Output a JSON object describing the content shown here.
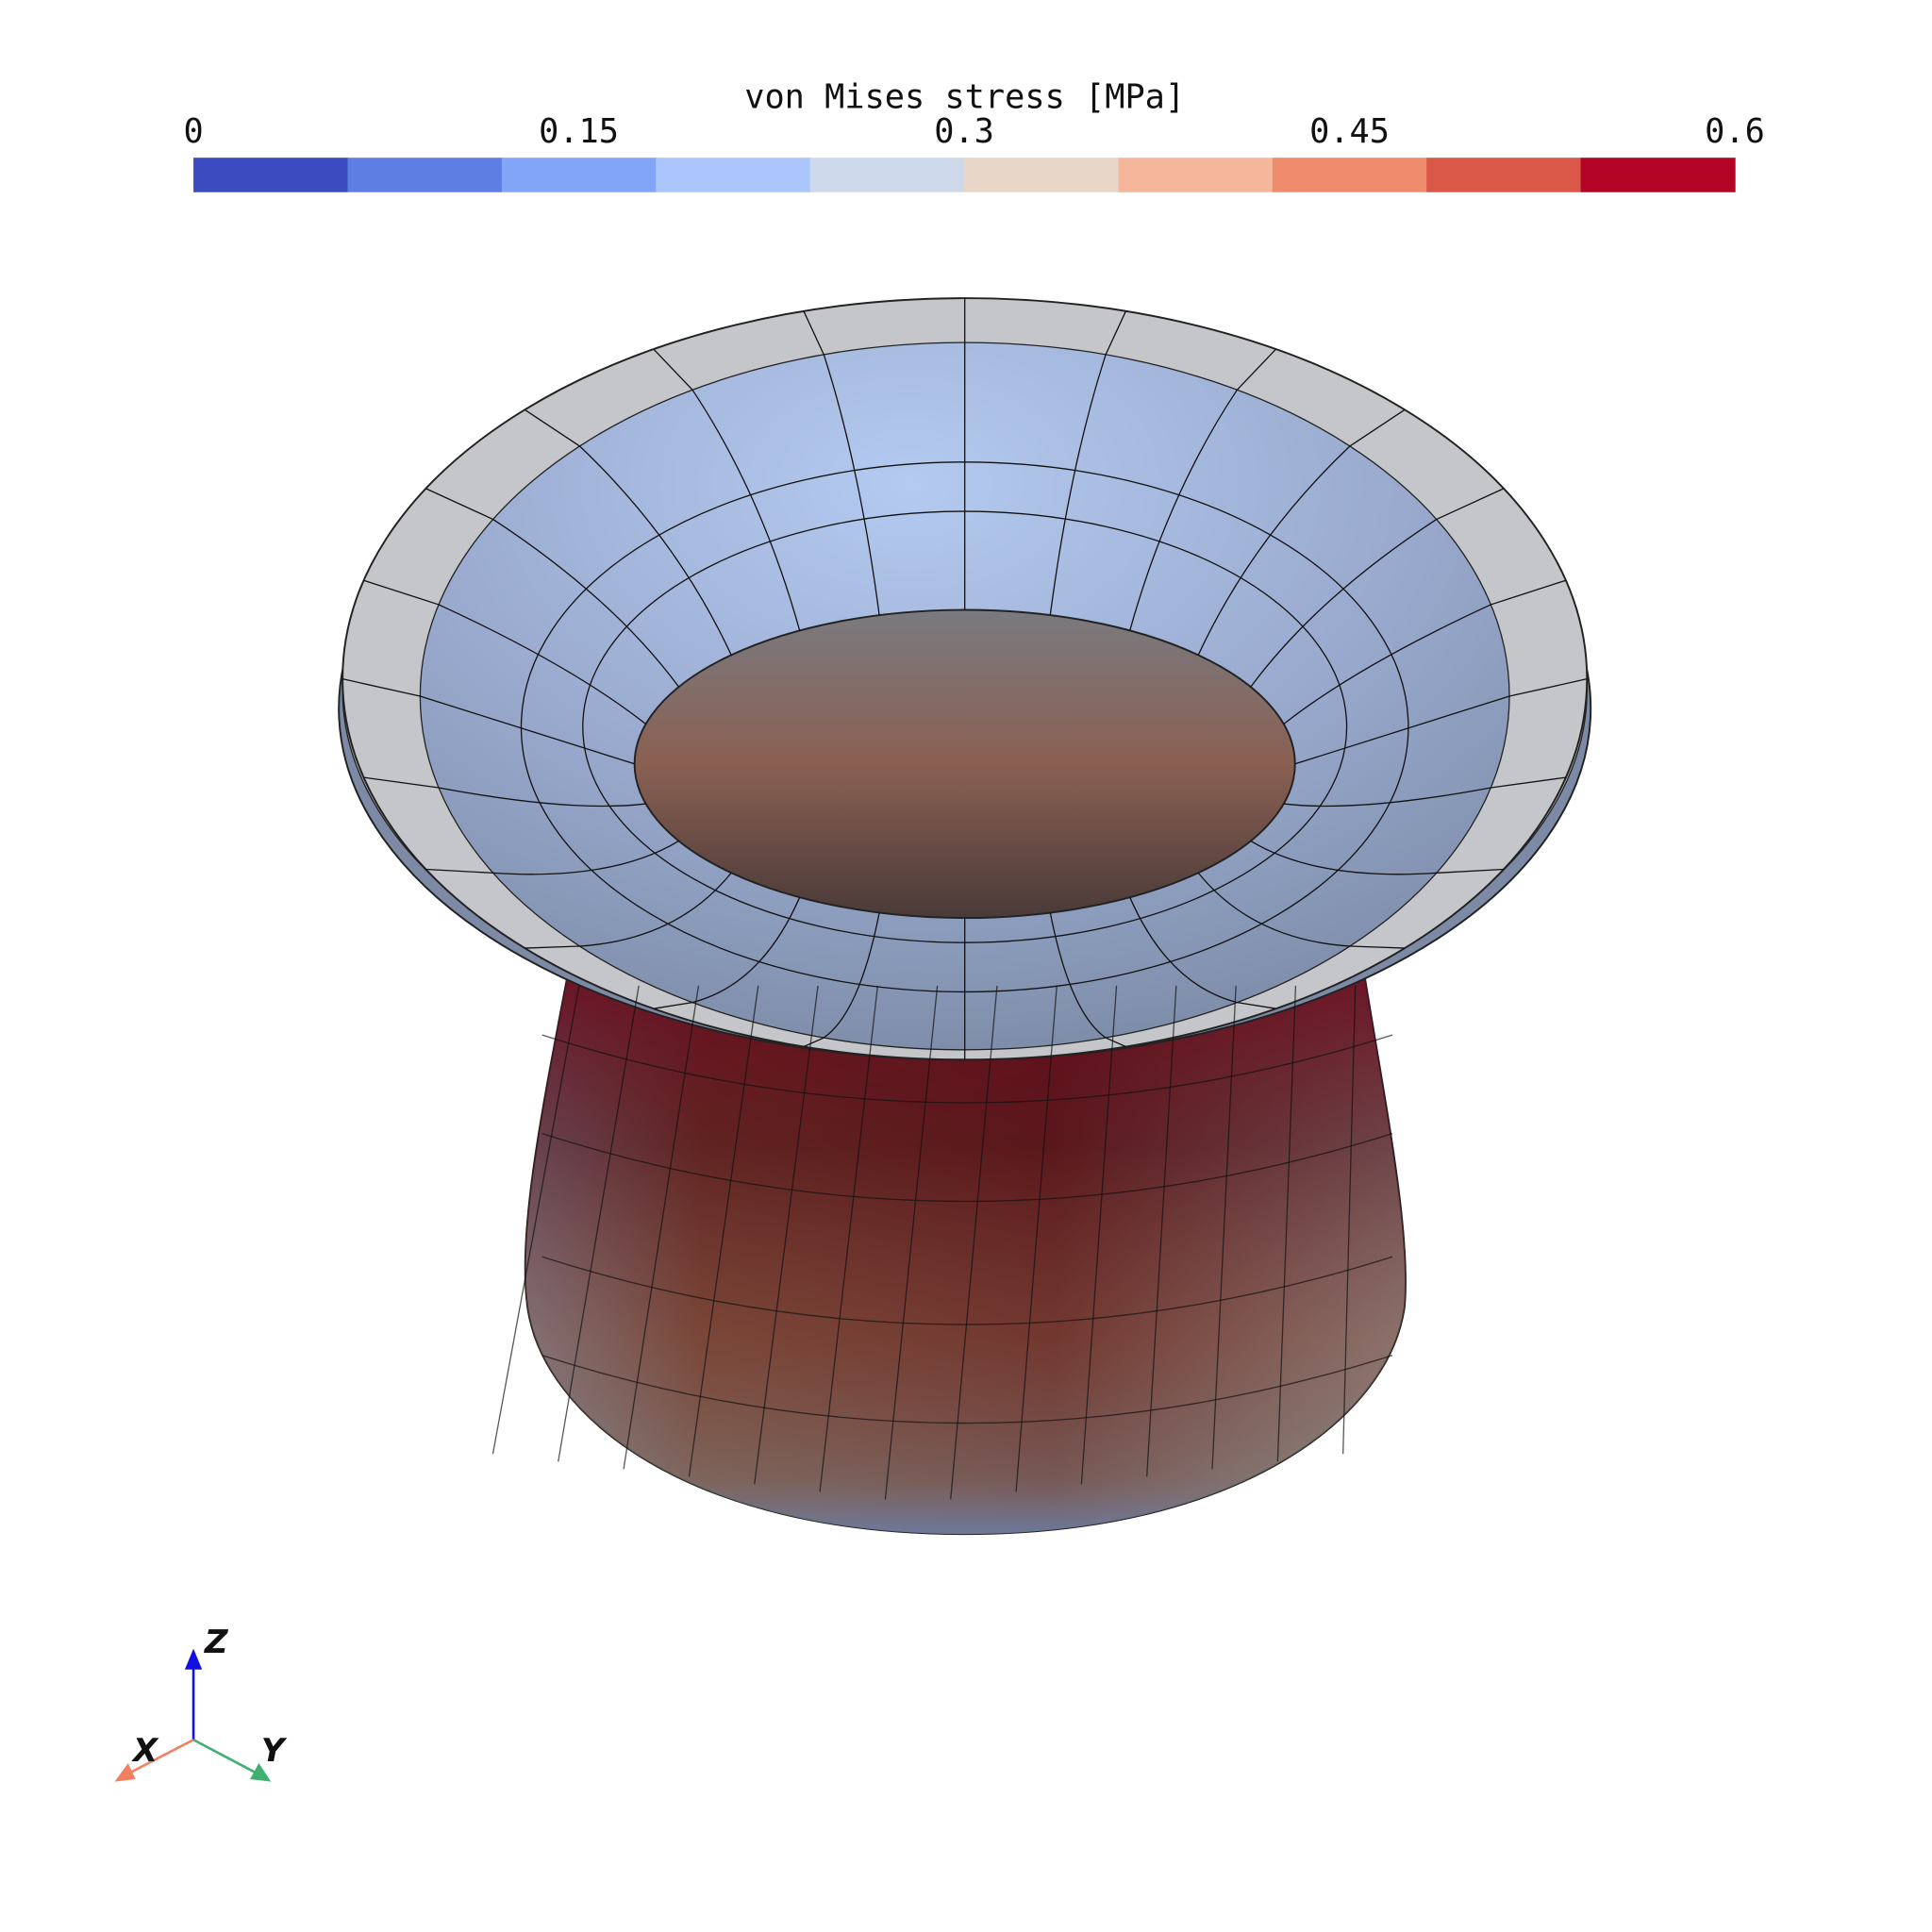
{
  "colorbar": {
    "title": "von Mises stress [MPa]",
    "range": [
      0,
      0.6
    ],
    "ticks": [
      0,
      0.15,
      0.3,
      0.45,
      0.6
    ],
    "colors": [
      "#3b4cc0",
      "#5e7ee4",
      "#83a5f8",
      "#aac6fc",
      "#cdd8ea",
      "#e8d6c9",
      "#f5b79b",
      "#ee8b6c",
      "#d95848",
      "#b40426"
    ]
  },
  "axes": {
    "x": "X",
    "y": "Y",
    "z": "Z"
  }
}
